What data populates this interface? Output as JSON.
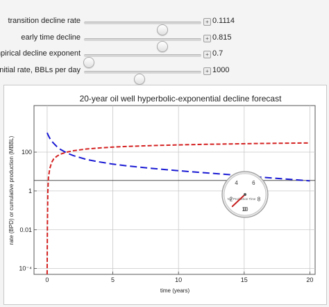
{
  "controls": [
    {
      "label": "transition decline rate",
      "value": "0.1114",
      "fraction": 0.69
    },
    {
      "label": "early time decline",
      "value": "0.815",
      "fraction": 0.69
    },
    {
      "label": "empirical decline exponent",
      "value": "0.7",
      "fraction": 0.0
    },
    {
      "label": "initial rate, BBLs per day",
      "value": "1000",
      "fraction": 0.48
    }
  ],
  "chart_data": {
    "type": "line",
    "title": "20-year oil well hyperbolic-exponential decline forecast",
    "xlabel": "time (years)",
    "ylabel": "rate (BPD) or cumulative production (MBBL)",
    "xlim": [
      -1,
      20.4
    ],
    "ylim_log10": [
      -4.3,
      4.4
    ],
    "yscale": "log",
    "x_ticks": [
      "0",
      "5",
      "10",
      "15",
      "20"
    ],
    "y_ticks": [
      "10⁻⁴",
      "0.01",
      "1",
      "100"
    ],
    "grid": true,
    "reference_line_y": 3.46,
    "series": [
      {
        "color": "#1a1ad4",
        "dash": "long-dash",
        "x": [
          0.0,
          0.05,
          0.1,
          0.2,
          0.35,
          0.5,
          0.75,
          1,
          1.5,
          2,
          3,
          4,
          5,
          6,
          8,
          10,
          12,
          14,
          16,
          18,
          20
        ],
        "y": [
          1000,
          830,
          700,
          520,
          370,
          280,
          190,
          140,
          90,
          66,
          42,
          31,
          24,
          20,
          14.5,
          11,
          8.6,
          6.8,
          5.3,
          4.2,
          3.3
        ]
      },
      {
        "color": "#d42020",
        "dash": "dash",
        "x": [
          0.0,
          0.02,
          0.05,
          0.1,
          0.2,
          0.35,
          0.5,
          0.75,
          1,
          1.5,
          2,
          3,
          4,
          5,
          6,
          8,
          10,
          12,
          14,
          16,
          18,
          20
        ],
        "y": [
          5e-05,
          0.02,
          0.9,
          5,
          14,
          30,
          45,
          62,
          78,
          100,
          118,
          145,
          165,
          182,
          196,
          218,
          236,
          252,
          266,
          278,
          289,
          298
        ]
      }
    ]
  },
  "gauge": {
    "label": "Net Production Time",
    "ticks": [
      "0",
      "2",
      "4",
      "6",
      "8",
      "10"
    ],
    "needle_value": 1.3
  }
}
